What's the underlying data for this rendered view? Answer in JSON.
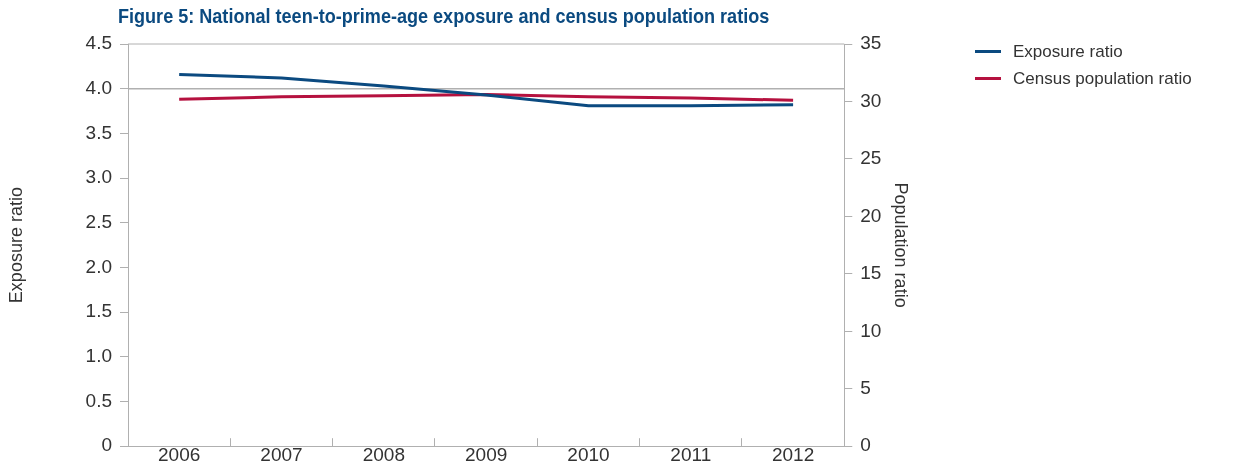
{
  "chart_data": {
    "type": "line",
    "title": "Figure 5: National teen-to-prime-age exposure and census population ratios",
    "ylabel": "Exposure ratio",
    "y2label": "Population ratio",
    "categories": [
      "2006",
      "2007",
      "2008",
      "2009",
      "2010",
      "2011",
      "2012"
    ],
    "series": [
      {
        "name": "Exposure ratio",
        "color": "#0b4a80",
        "values": [
          4.16,
          4.12,
          4.03,
          3.93,
          3.81,
          3.81,
          3.82
        ]
      },
      {
        "name": "Census population ratio",
        "color": "#b5113f",
        "axis": "y2",
        "values": [
          30.2,
          30.4,
          30.5,
          30.6,
          30.4,
          30.3,
          30.1
        ]
      }
    ],
    "ylim": [
      0,
      4.5
    ],
    "yticks": [
      "0",
      {
        "value": 0.5,
        "label": "0.5"
      },
      {
        "value": 1,
        "label": "1.0"
      },
      {
        "value": 1.5,
        "label": "1.5"
      },
      {
        "value": 2,
        "label": "2.0"
      },
      {
        "value": 2.5,
        "label": "2.5"
      },
      {
        "value": 3,
        "label": "3.0"
      },
      {
        "value": 3.5,
        "label": "3.5"
      },
      {
        "value": 4,
        "label": "4.0"
      },
      {
        "value": 4.5,
        "label": "4.5"
      }
    ],
    "y2lim": [
      0,
      35
    ],
    "y2ticks": [
      0,
      5,
      10,
      15,
      20,
      25,
      30,
      35
    ],
    "ref_lines": [
      {
        "axis": "y",
        "value": 4,
        "color": "#b0b0b0"
      }
    ],
    "grid": false,
    "legend": "top right",
    "marker": "none",
    "line_style": "solid"
  }
}
